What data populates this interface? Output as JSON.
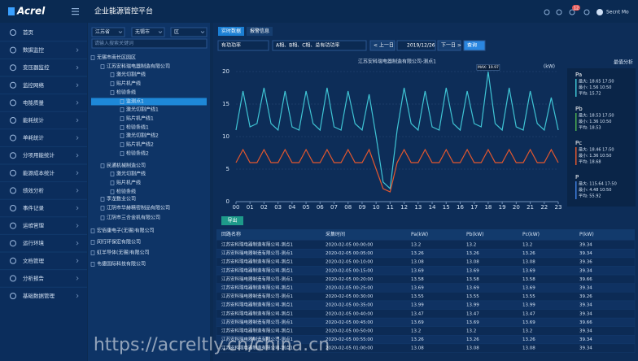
{
  "header": {
    "logo": "Acrel",
    "title": "企业能源管控平台",
    "badge": "12",
    "user": "Secnt Mo"
  },
  "sidebar": {
    "menu": [
      "首页",
      "数据监控",
      "变压器监控",
      "监控网络",
      "电能质量",
      "能耗统计",
      "单耗统计",
      "分项用能统计",
      "能源成本统计",
      "绩效分析",
      "事件记录",
      "运维管理",
      "运行环境",
      "文档管理",
      "分析报告",
      "基础数据管理"
    ]
  },
  "tree": {
    "selects": [
      "江苏省",
      "无锡市",
      "区"
    ],
    "search_placeholder": "请输入搜索关键词",
    "items": [
      {
        "label": "无锡市南长区园区",
        "level": 0
      },
      {
        "label": "江苏安科瑞电器制造有限公司",
        "level": 1
      },
      {
        "label": "激光切割产线",
        "level": 2
      },
      {
        "label": "贴片机产线",
        "level": 2
      },
      {
        "label": "检验条线",
        "level": 2
      },
      {
        "label": "监测点1",
        "level": 3,
        "selected": true
      },
      {
        "label": "激光切割产线1",
        "level": 3
      },
      {
        "label": "贴片机产线1",
        "level": 3
      },
      {
        "label": "检验条线1",
        "level": 3
      },
      {
        "label": "激光切割产线2",
        "level": 3
      },
      {
        "label": "贴片机产线2",
        "level": 3
      },
      {
        "label": "检验条线2",
        "level": 3
      },
      {
        "label": "民通机械制造公司",
        "level": 1
      },
      {
        "label": "激光切割产线",
        "level": 2
      },
      {
        "label": "贴片机产线",
        "level": 2
      },
      {
        "label": "检验条线",
        "level": 2
      },
      {
        "label": "李龙数业公司",
        "level": 1
      },
      {
        "label": "江阴市华赫精密制品有限公司",
        "level": 1
      },
      {
        "label": "江阴市三合金机有限公司",
        "level": 1
      },
      {
        "label": "宏佰康电子(无锡)有限公司",
        "level": 0
      },
      {
        "label": "闵行环保宏有限公司",
        "level": 0
      },
      {
        "label": "虹羊导体(无锡)有限公司",
        "level": 0
      },
      {
        "label": "韦捷国际科技有限公司",
        "level": 0
      }
    ]
  },
  "tabs": [
    "实时数据",
    "报警信息"
  ],
  "filters": {
    "metric": "有功功率",
    "phases": "A相、B相、C相、总有功功率",
    "prev": "< 上一日",
    "date": "2019/12/26",
    "next": "下一日 >",
    "query": "查询"
  },
  "chart_data": {
    "type": "line",
    "title": "江苏安科瑞电器制造有限公司-测点1",
    "unit": "(kW)",
    "annotation": "MAX: 19.97",
    "x": [
      0,
      0.5,
      1,
      1.5,
      2,
      2.5,
      3,
      3.5,
      4,
      4.5,
      5,
      5.5,
      6,
      6.5,
      7,
      7.5,
      8,
      8.5,
      9,
      9.5,
      10,
      10.5,
      11,
      11.5,
      12,
      12.5,
      13,
      13.5,
      14,
      14.5,
      15,
      15.5,
      16,
      16.5,
      17,
      17.5,
      18,
      18.5,
      19,
      19.5,
      20,
      20.5,
      21,
      21.5,
      22,
      22.5,
      23
    ],
    "series": [
      {
        "color": "#3fc4d4",
        "values": [
          11,
          17,
          11.5,
          12,
          17.5,
          12,
          11,
          17,
          11.5,
          11,
          17,
          12,
          11,
          17.5,
          11.5,
          11,
          17,
          12,
          11,
          16.5,
          10,
          3,
          2,
          11,
          17.5,
          12,
          11,
          17,
          11.5,
          11,
          17.5,
          12,
          11,
          17,
          12,
          11.5,
          19.97,
          12,
          11,
          17.5,
          11.5,
          11,
          17,
          12,
          11,
          16,
          11
        ]
      },
      {
        "color": "#e4572e",
        "values": [
          6,
          8,
          6,
          6,
          8,
          6,
          6,
          8,
          6,
          6,
          8,
          6,
          6,
          8,
          6,
          6,
          8,
          6,
          6,
          8,
          5,
          2,
          1.5,
          6,
          8,
          6,
          6,
          8,
          6,
          6,
          8,
          6,
          6,
          8,
          6,
          6,
          8,
          6,
          6,
          8,
          6,
          6,
          8,
          6,
          6,
          8,
          6
        ]
      }
    ],
    "xlim": [
      0,
      23
    ],
    "xticks": [
      {
        "value": 0,
        "label": "00"
      },
      {
        "value": 1,
        "label": "01"
      },
      {
        "value": 2,
        "label": "02"
      },
      {
        "value": 3,
        "label": "03"
      },
      {
        "value": 4,
        "label": "04"
      },
      {
        "value": 5,
        "label": "05"
      },
      {
        "value": 6,
        "label": "06"
      },
      {
        "value": 7,
        "label": "07"
      },
      {
        "value": 8,
        "label": "08"
      },
      {
        "value": 9,
        "label": "09"
      },
      10,
      11,
      12,
      13,
      14,
      15,
      16,
      17,
      18,
      19,
      20,
      21,
      22,
      23
    ],
    "ylim": [
      0,
      20
    ],
    "yticks": [
      0,
      5,
      10,
      15,
      20
    ],
    "grid": true
  },
  "stats": {
    "title": "最值分析",
    "items": [
      {
        "name": "Pa",
        "color": "#3fc4d4",
        "max": "最大: 18.65  17:50",
        "min": "最小: 1.56  10:50",
        "avg": "平均: 15.72"
      },
      {
        "name": "Pb",
        "color": "#4caf50",
        "max": "最大: 18.53  17:50",
        "min": "最小: 1.36  10:50",
        "avg": "平均: 18.53"
      },
      {
        "name": "Pc",
        "color": "#e4572e",
        "max": "最大: 18.46  17:50",
        "min": "最小: 1.36  10:50",
        "avg": "平均: 18.68"
      },
      {
        "name": "P",
        "color": "#3f7fe0",
        "max": "最大: 115.64  17:50",
        "min": "最小: 4.48  10:50",
        "avg": "平均: 55.92"
      }
    ]
  },
  "export": "导出",
  "table": {
    "columns": [
      "回路名称",
      "采集时间",
      "Pa(kW)",
      "Pb(kW)",
      "Pc(kW)",
      "P(kW)"
    ],
    "rows": [
      [
        "江苏安科瑞电器制造有限公司-测点1",
        "2020-02-05  00:00:00",
        "13.2",
        "13.2",
        "13.2",
        "39.34"
      ],
      [
        "江苏安科瑞电器制造有限公司-测点1",
        "2020-02-05  00:05:00",
        "13.26",
        "13.26",
        "13.26",
        "39.34"
      ],
      [
        "江苏安科瑞电器制造有限公司-测点1",
        "2020-02-05  00:10:00",
        "13.08",
        "13.08",
        "13.08",
        "39.36"
      ],
      [
        "江苏安科瑞电器制造有限公司-测点1",
        "2020-02-05  00:15:00",
        "13.69",
        "13.69",
        "13.69",
        "39.34"
      ],
      [
        "江苏安科瑞电器制造有限公司-测点1",
        "2020-02-05  00:20:00",
        "13.58",
        "13.58",
        "13.58",
        "39.66"
      ],
      [
        "江苏安科瑞电器制造有限公司-测点1",
        "2020-02-05  00:25:00",
        "13.69",
        "13.69",
        "13.69",
        "39.34"
      ],
      [
        "江苏安科瑞电器制造有限公司-测点1",
        "2020-02-05  00:30:00",
        "13.55",
        "13.55",
        "13.55",
        "39.26"
      ],
      [
        "江苏安科瑞电器制造有限公司-测点1",
        "2020-02-05  00:35:00",
        "13.99",
        "13.99",
        "13.99",
        "39.34"
      ],
      [
        "江苏安科瑞电器制造有限公司-测点1",
        "2020-02-05  00:40:00",
        "13.47",
        "13.47",
        "13.47",
        "39.34"
      ],
      [
        "江苏安科瑞电器制造有限公司-测点1",
        "2020-02-05  00:45:00",
        "13.69",
        "13.69",
        "13.69",
        "39.66"
      ],
      [
        "江苏安科瑞电器制造有限公司-测点1",
        "2020-02-05  00:50:00",
        "13.2",
        "13.2",
        "13.2",
        "39.34"
      ],
      [
        "江苏安科瑞电器制造有限公司-测点1",
        "2020-02-05  00:55:00",
        "13.26",
        "13.26",
        "13.26",
        "39.34"
      ],
      [
        "江苏安科瑞电器制造有限公司-测点1",
        "2020-02-05  01:00:00",
        "13.08",
        "13.08",
        "13.08",
        "39.34"
      ]
    ]
  },
  "watermark": "https://acreltly.cn/china.cn"
}
